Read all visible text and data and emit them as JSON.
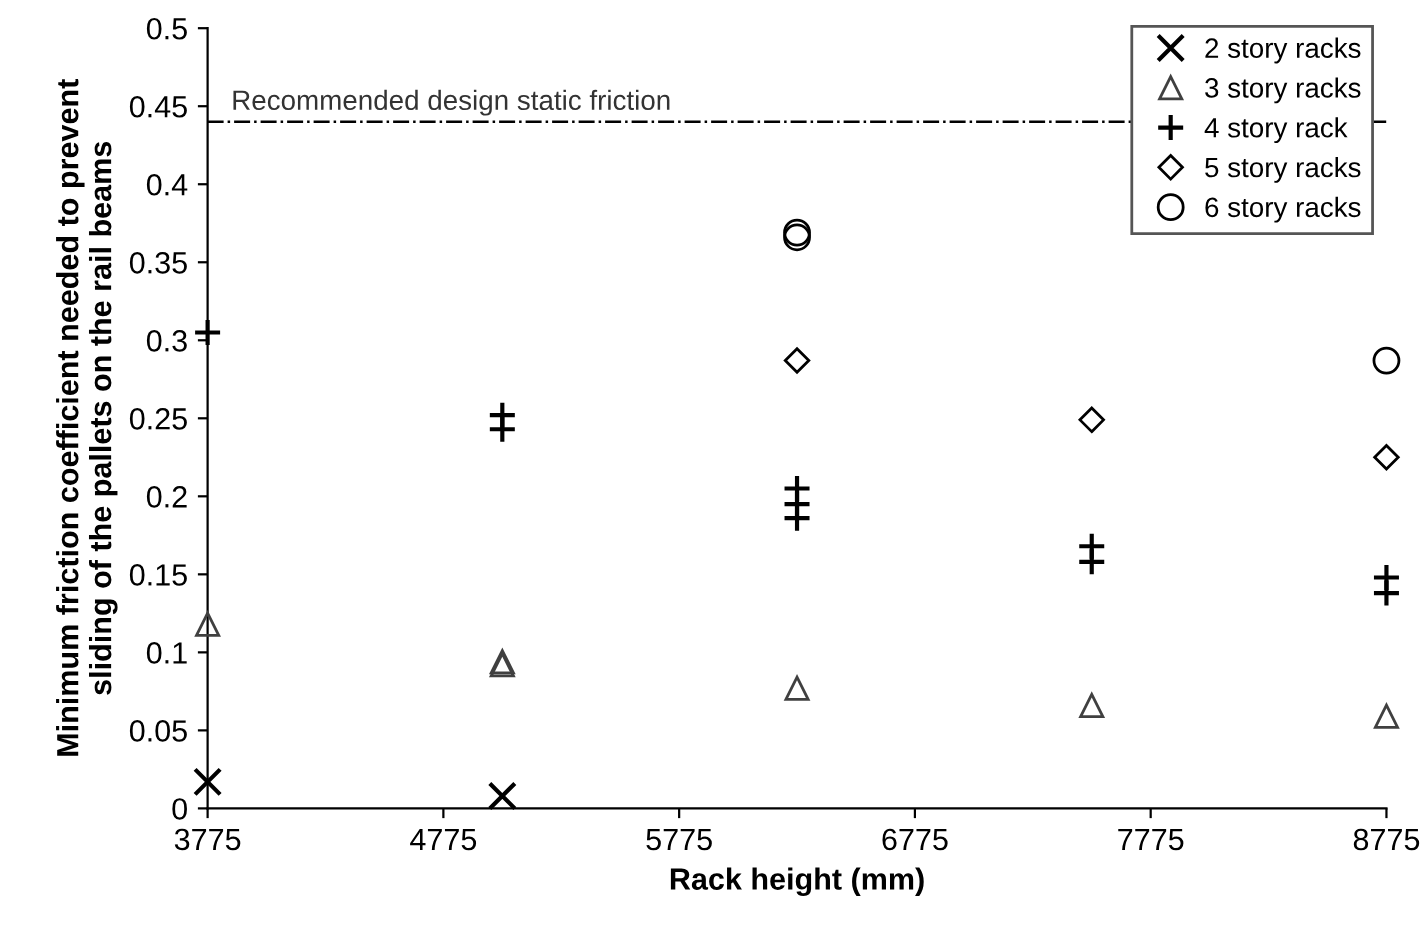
{
  "chart_data": {
    "type": "scatter",
    "xlabel": "Rack height (mm)",
    "ylabel": "Minimum friction coefficient needed to prevent\nsliding of the pallets on the rail beams",
    "xlim": [
      3775,
      8775
    ],
    "xticks": [
      3775,
      4775,
      5775,
      6775,
      7775,
      8775
    ],
    "ylim": [
      0,
      0.5
    ],
    "yticks": [
      0,
      0.05,
      0.1,
      0.15,
      0.2,
      0.25,
      0.3,
      0.35,
      0.4,
      0.45,
      0.5
    ],
    "grid": false,
    "legend": "top right",
    "series": [
      {
        "name": "2 story racks",
        "color": "#000000",
        "marker": "cross",
        "x": [
          3775,
          5025
        ],
        "values": [
          0.017,
          0.008
        ]
      },
      {
        "name": "3 story racks",
        "color": "#404040",
        "marker": "triangle",
        "x": [
          3775,
          5025,
          5025,
          6275,
          7525,
          8775
        ],
        "values": [
          0.118,
          0.094,
          0.092,
          0.077,
          0.066,
          0.059
        ]
      },
      {
        "name": "4 story rack",
        "color": "#000000",
        "marker": "plus",
        "x": [
          3775,
          5025,
          5025,
          6275,
          6275,
          6275,
          7525,
          7525,
          8775,
          8775
        ],
        "values": [
          0.305,
          0.252,
          0.243,
          0.205,
          0.195,
          0.186,
          0.168,
          0.158,
          0.148,
          0.138
        ]
      },
      {
        "name": "5 story racks",
        "color": "#000000",
        "marker": "diamond",
        "x": [
          6275,
          7525,
          8775
        ],
        "values": [
          0.287,
          0.249,
          0.225
        ]
      },
      {
        "name": "6 story racks",
        "color": "#000000",
        "marker": "circle",
        "x": [
          6275,
          6275,
          8775
        ],
        "values": [
          0.369,
          0.366,
          0.287
        ]
      }
    ],
    "ref_lines": [
      {
        "axis": "y",
        "value": 0.44,
        "label": "Recommended design static friction",
        "color": "#000000",
        "line_style": "dashdot"
      }
    ]
  }
}
